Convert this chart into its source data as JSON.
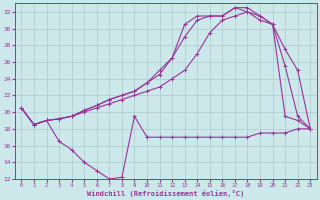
{
  "xlabel": "Windchill (Refroidissement éolien,°C)",
  "xlim": [
    -0.5,
    23.5
  ],
  "ylim": [
    12,
    33
  ],
  "xticks": [
    0,
    1,
    2,
    3,
    4,
    5,
    6,
    7,
    8,
    9,
    10,
    11,
    12,
    13,
    14,
    15,
    16,
    17,
    18,
    19,
    20,
    21,
    22,
    23
  ],
  "yticks": [
    12,
    14,
    16,
    18,
    20,
    22,
    24,
    26,
    28,
    30,
    32
  ],
  "bg_color": "#cce8ea",
  "grid_color": "#aacccc",
  "line_color": "#993399",
  "series": [
    {
      "x": [
        0,
        1,
        2,
        3,
        4,
        5,
        6,
        7,
        8,
        9,
        10,
        11,
        12,
        13,
        14,
        15,
        16,
        17,
        18,
        19,
        20,
        21,
        22,
        23
      ],
      "y": [
        20.5,
        18.5,
        19.0,
        16.5,
        15.5,
        14.0,
        13.0,
        12.0,
        12.2,
        19.5,
        17.0,
        17.0,
        17.0,
        17.0,
        17.0,
        17.0,
        17.0,
        17.0,
        17.0,
        17.5,
        17.5,
        17.5,
        18.0,
        18.0
      ]
    },
    {
      "x": [
        0,
        1,
        2,
        3,
        4,
        5,
        6,
        7,
        8,
        9,
        10,
        11,
        12,
        13,
        14,
        15,
        16,
        17,
        18,
        19,
        20,
        21,
        22,
        23
      ],
      "y": [
        20.5,
        18.5,
        19.0,
        19.2,
        19.5,
        20.0,
        20.5,
        21.0,
        21.5,
        22.0,
        22.5,
        23.0,
        24.0,
        25.0,
        27.0,
        29.5,
        31.0,
        31.5,
        32.0,
        31.0,
        30.5,
        25.5,
        19.5,
        18.0
      ]
    },
    {
      "x": [
        0,
        1,
        2,
        3,
        4,
        5,
        6,
        7,
        8,
        9,
        10,
        11,
        12,
        13,
        14,
        15,
        16,
        17,
        18,
        19,
        20,
        21,
        22,
        23
      ],
      "y": [
        20.5,
        18.5,
        19.0,
        19.2,
        19.5,
        20.2,
        20.8,
        21.5,
        22.0,
        22.5,
        23.5,
        24.5,
        26.5,
        29.0,
        31.0,
        31.5,
        31.5,
        32.5,
        32.0,
        31.5,
        30.5,
        27.5,
        25.0,
        18.0
      ]
    },
    {
      "x": [
        0,
        1,
        2,
        3,
        4,
        5,
        6,
        7,
        8,
        9,
        10,
        11,
        12,
        13,
        14,
        15,
        16,
        17,
        18,
        19,
        20,
        21,
        22,
        23
      ],
      "y": [
        20.5,
        18.5,
        19.0,
        19.2,
        19.5,
        20.2,
        20.8,
        21.5,
        22.0,
        22.5,
        23.5,
        25.0,
        26.5,
        30.5,
        31.5,
        31.5,
        31.5,
        32.5,
        32.5,
        31.5,
        30.5,
        19.5,
        19.0,
        18.0
      ]
    }
  ]
}
